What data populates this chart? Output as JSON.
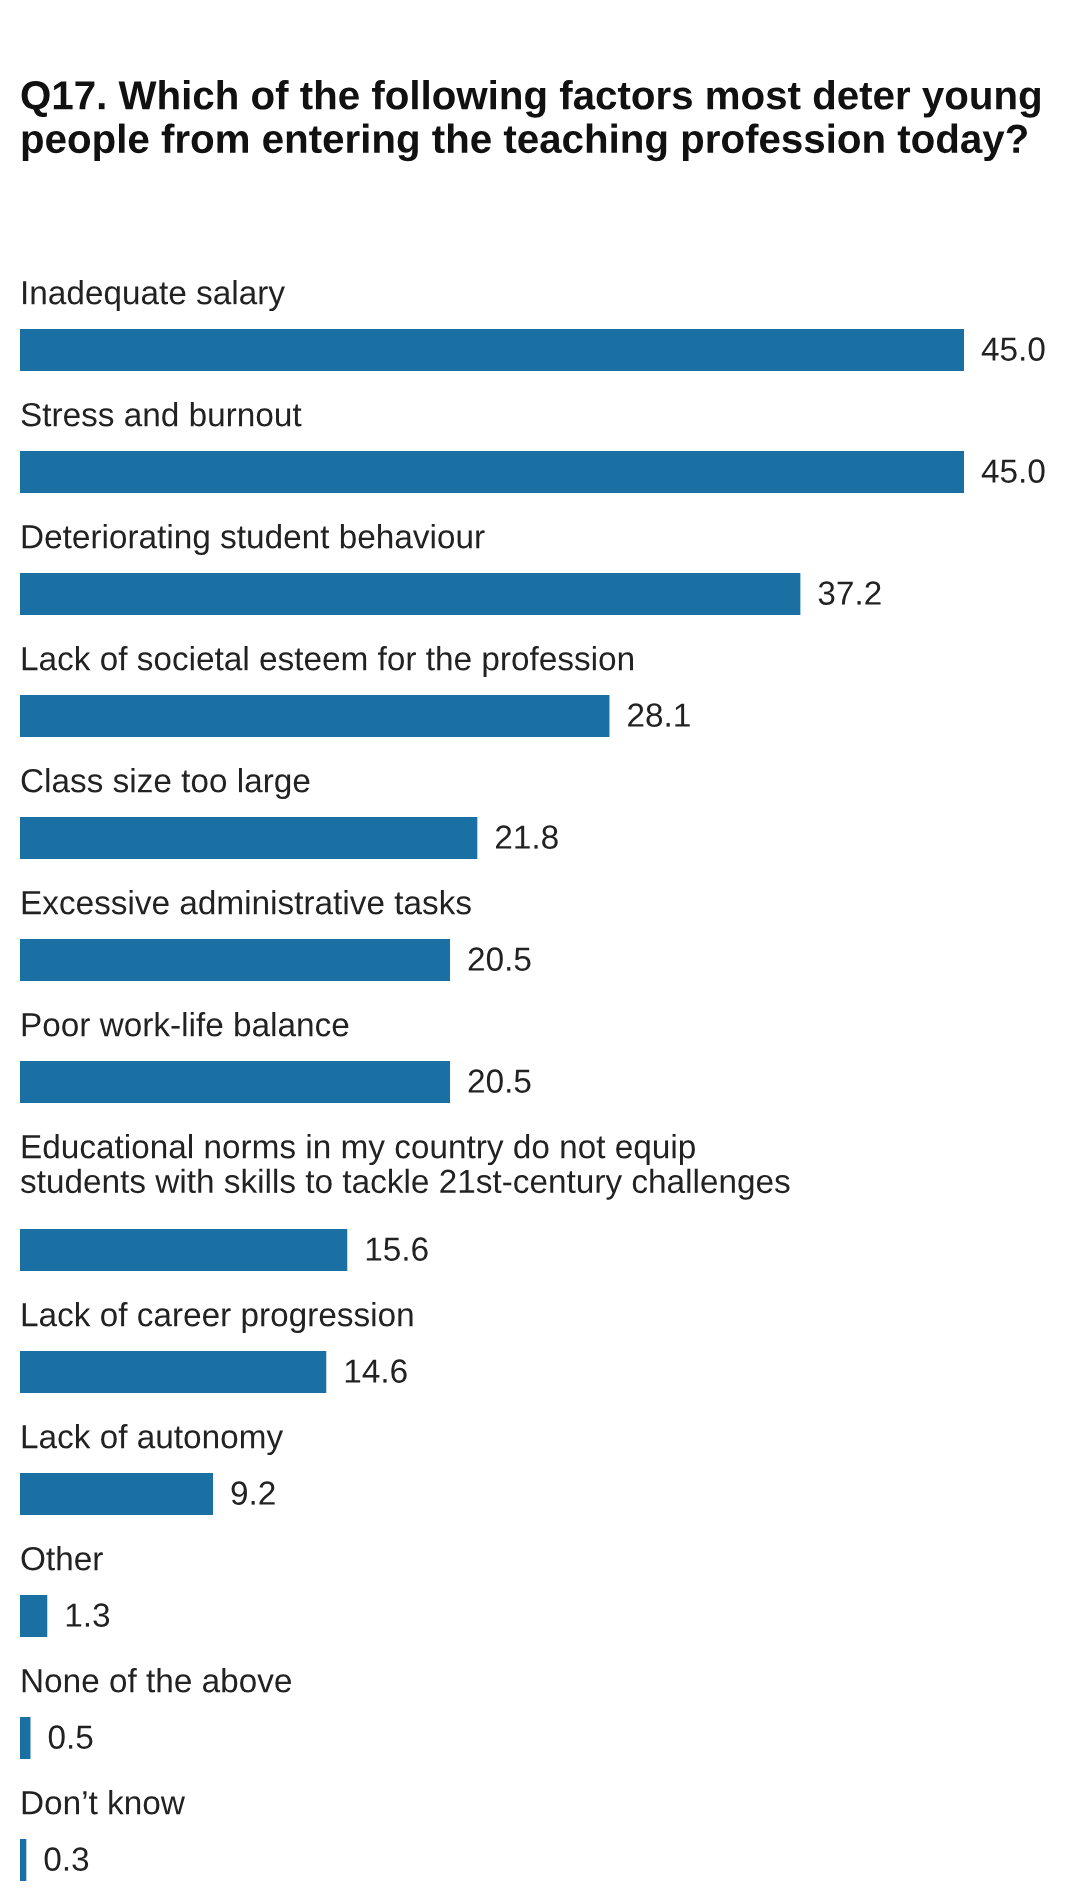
{
  "chart_data": {
    "type": "bar",
    "orientation": "horizontal",
    "title": "Q17. Which of the following factors most deter young people from entering the teaching profession today?",
    "categories": [
      "Inadequate salary",
      "Stress and burnout",
      "Deteriorating student behaviour",
      "Lack of societal esteem for the profession",
      "Class size too large",
      "Excessive administrative tasks",
      "Poor work-life balance",
      "Educational norms in my country do not equip\nstudents with skills to tackle 21st-century challenges",
      "Lack of career progression",
      "Lack of autonomy",
      "Other",
      "None of the above",
      "Don’t know"
    ],
    "values": [
      45.0,
      45.0,
      37.2,
      28.1,
      21.8,
      20.5,
      20.5,
      15.6,
      14.6,
      9.2,
      1.3,
      0.5,
      0.3
    ],
    "value_labels": [
      "45.0",
      "45.0",
      "37.2",
      "28.1",
      "21.8",
      "20.5",
      "20.5",
      "15.6",
      "14.6",
      "9.2",
      "1.3",
      "0.5",
      "0.3"
    ],
    "color": "#1a6fa3"
  }
}
